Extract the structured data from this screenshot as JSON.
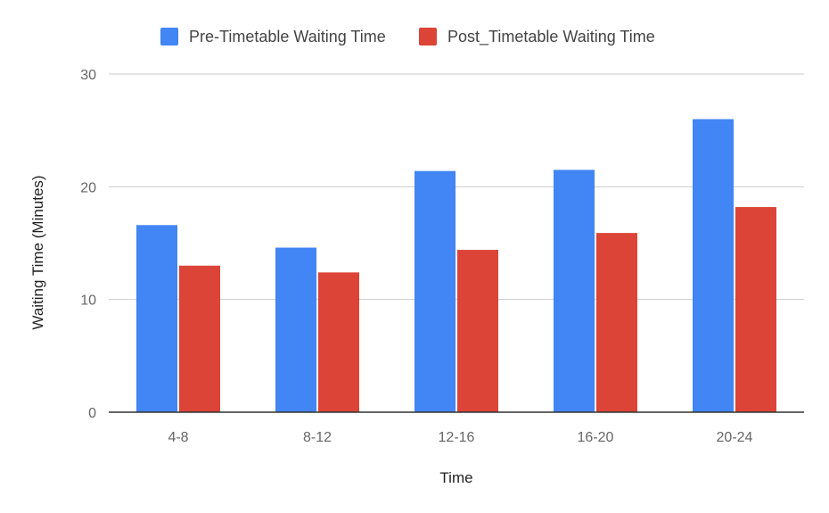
{
  "chart_data": {
    "type": "bar",
    "title": "",
    "xlabel": "Time",
    "ylabel": "Waiting Time (Minutes)",
    "categories": [
      "4-8",
      "8-12",
      "12-16",
      "16-20",
      "20-24"
    ],
    "series": [
      {
        "name": "Pre-Timetable Waiting Time",
        "color": "#4285f4",
        "values": [
          16.6,
          14.6,
          21.4,
          21.5,
          26.0
        ]
      },
      {
        "name": "Post_Timetable Waiting Time",
        "color": "#db4437",
        "values": [
          13.0,
          12.4,
          14.4,
          15.9,
          18.2
        ]
      }
    ],
    "ylim": [
      0,
      30
    ],
    "yticks": [
      0,
      10,
      20,
      30
    ],
    "grid": true,
    "legend": "top-center"
  }
}
